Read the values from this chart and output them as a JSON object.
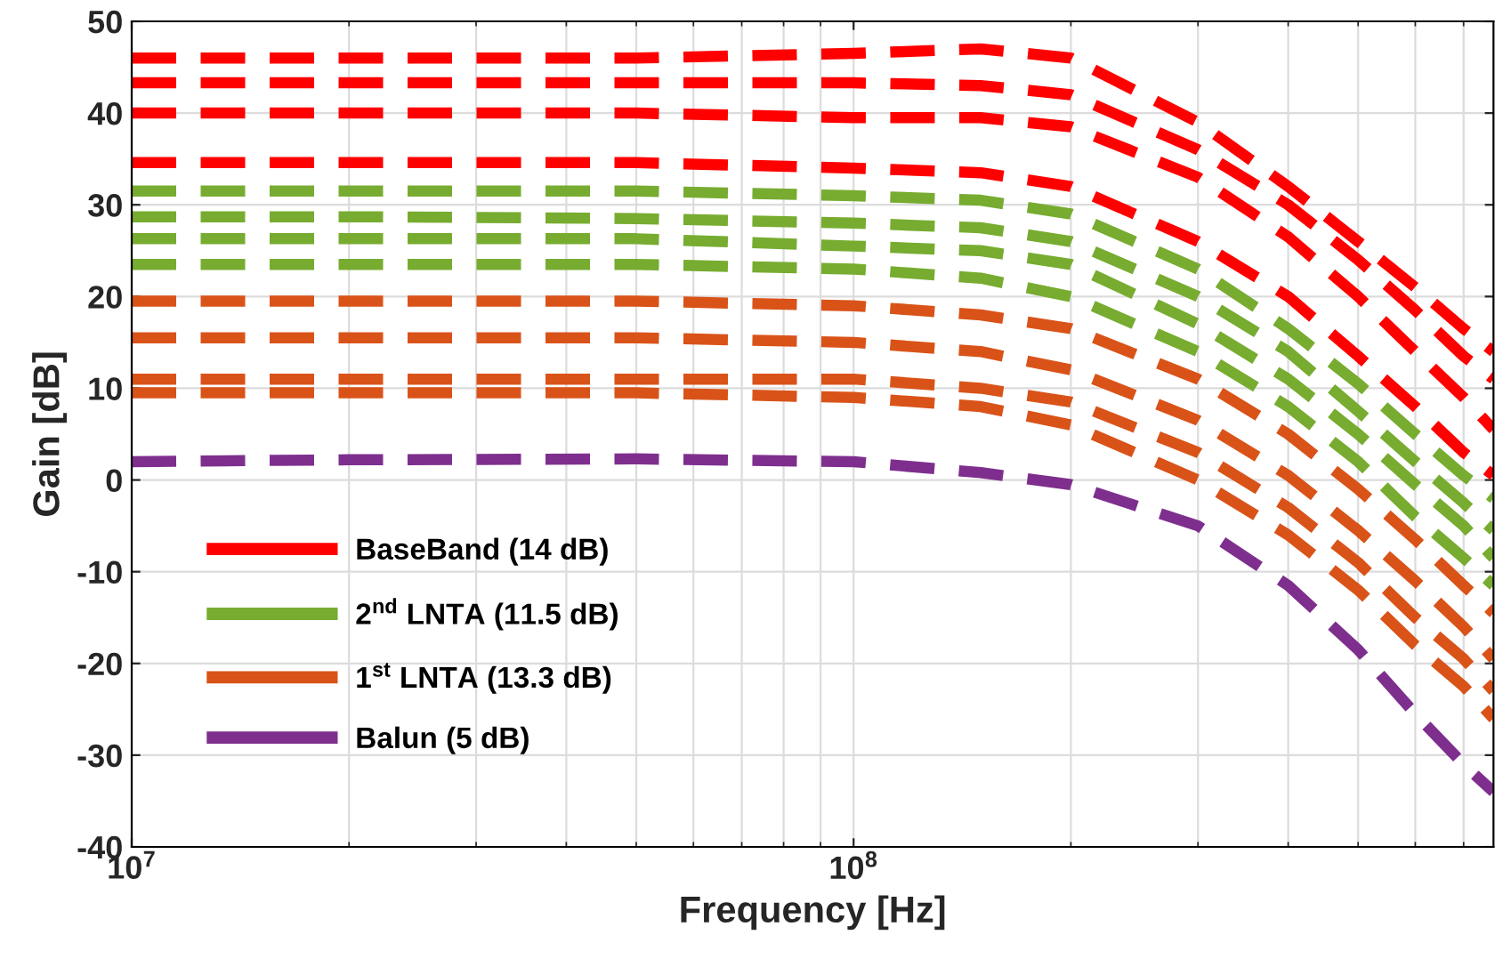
{
  "chart_data": {
    "type": "line",
    "xlabel": "Frequency [Hz]",
    "ylabel": "Gain [dB]",
    "log": "x",
    "grid": true,
    "legend": "bottom left",
    "line_style": "dashed",
    "marker": "none",
    "xlim": [
      10000000,
      770000000
    ],
    "xticks": [
      {
        "value": 10000000,
        "label": "10$^{7}$"
      },
      {
        "value": 100000000,
        "label": "10$^{8}$"
      }
    ],
    "ylim": [
      -40,
      50
    ],
    "yticks": [
      -40,
      -30,
      -20,
      -10,
      0,
      10,
      20,
      30,
      40,
      50
    ],
    "x": [
      10000000,
      20000000,
      50000000,
      100000000,
      150000000,
      200000000,
      300000000,
      400000000,
      500000000,
      600000000,
      700000000,
      770000000
    ],
    "series": [
      {
        "name": "BaseBand (14 dB)",
        "color": "#ff0000",
        "values": [
          46,
          46,
          46,
          46.5,
          47,
          46,
          39,
          32,
          26,
          21,
          16.5,
          14
        ]
      },
      {
        "color": "#ff0000",
        "values": [
          43.3,
          43.3,
          43.3,
          43.3,
          43,
          42,
          36,
          30,
          24,
          18.5,
          13.5,
          11
        ]
      },
      {
        "color": "#ff0000",
        "values": [
          40,
          40,
          40,
          39.5,
          39.5,
          38.5,
          33,
          26.5,
          20,
          14,
          9,
          5.5
        ]
      },
      {
        "color": "#ff0000",
        "values": [
          34.6,
          34.6,
          34.6,
          34,
          33.5,
          32,
          26,
          20,
          13.5,
          8,
          3,
          0.5
        ]
      },
      {
        "name": "2$^{nd}$ LNTA (11.5 dB)",
        "color": "#77ac30",
        "values": [
          31.5,
          31.5,
          31.5,
          31,
          30.5,
          29,
          23,
          16.5,
          10.5,
          5,
          0.5,
          -2
        ]
      },
      {
        "color": "#77ac30",
        "values": [
          28.7,
          28.7,
          28.5,
          28,
          27.5,
          26,
          20,
          14,
          7.5,
          2,
          -2.5,
          -5.5
        ]
      },
      {
        "color": "#77ac30",
        "values": [
          26.3,
          26.3,
          26.3,
          25.5,
          25,
          23.5,
          17,
          11,
          5,
          -0.5,
          -5,
          -8.5
        ]
      },
      {
        "color": "#77ac30",
        "values": [
          23.5,
          23.5,
          23.5,
          23,
          22,
          20,
          14,
          8,
          2,
          -4,
          -8.5,
          -11.5
        ]
      },
      {
        "name": "1$^{st}$ LNTA (13.3 dB)",
        "color": "#d95319",
        "values": [
          19.5,
          19.5,
          19.5,
          19,
          18,
          16.5,
          11,
          5,
          -1,
          -6.5,
          -11.5,
          -14.5
        ]
      },
      {
        "color": "#d95319",
        "values": [
          15.5,
          15.5,
          15.5,
          15,
          14,
          12,
          6.5,
          0.5,
          -5.5,
          -11,
          -16,
          -19.5
        ]
      },
      {
        "color": "#d95319",
        "values": [
          11,
          11,
          11,
          11,
          10,
          8.5,
          3,
          -3,
          -9,
          -15,
          -19.5,
          -23
        ]
      },
      {
        "color": "#d95319",
        "values": [
          9.5,
          9.5,
          9.5,
          9,
          8,
          6,
          0,
          -6,
          -12,
          -18,
          -22.5,
          -26
        ]
      },
      {
        "name": "Balun (5 dB)",
        "color": "#7e2f8e",
        "values": [
          2,
          2.2,
          2.3,
          2,
          0.8,
          -0.5,
          -5,
          -11.5,
          -18.5,
          -25.5,
          -31,
          -34
        ]
      }
    ]
  }
}
